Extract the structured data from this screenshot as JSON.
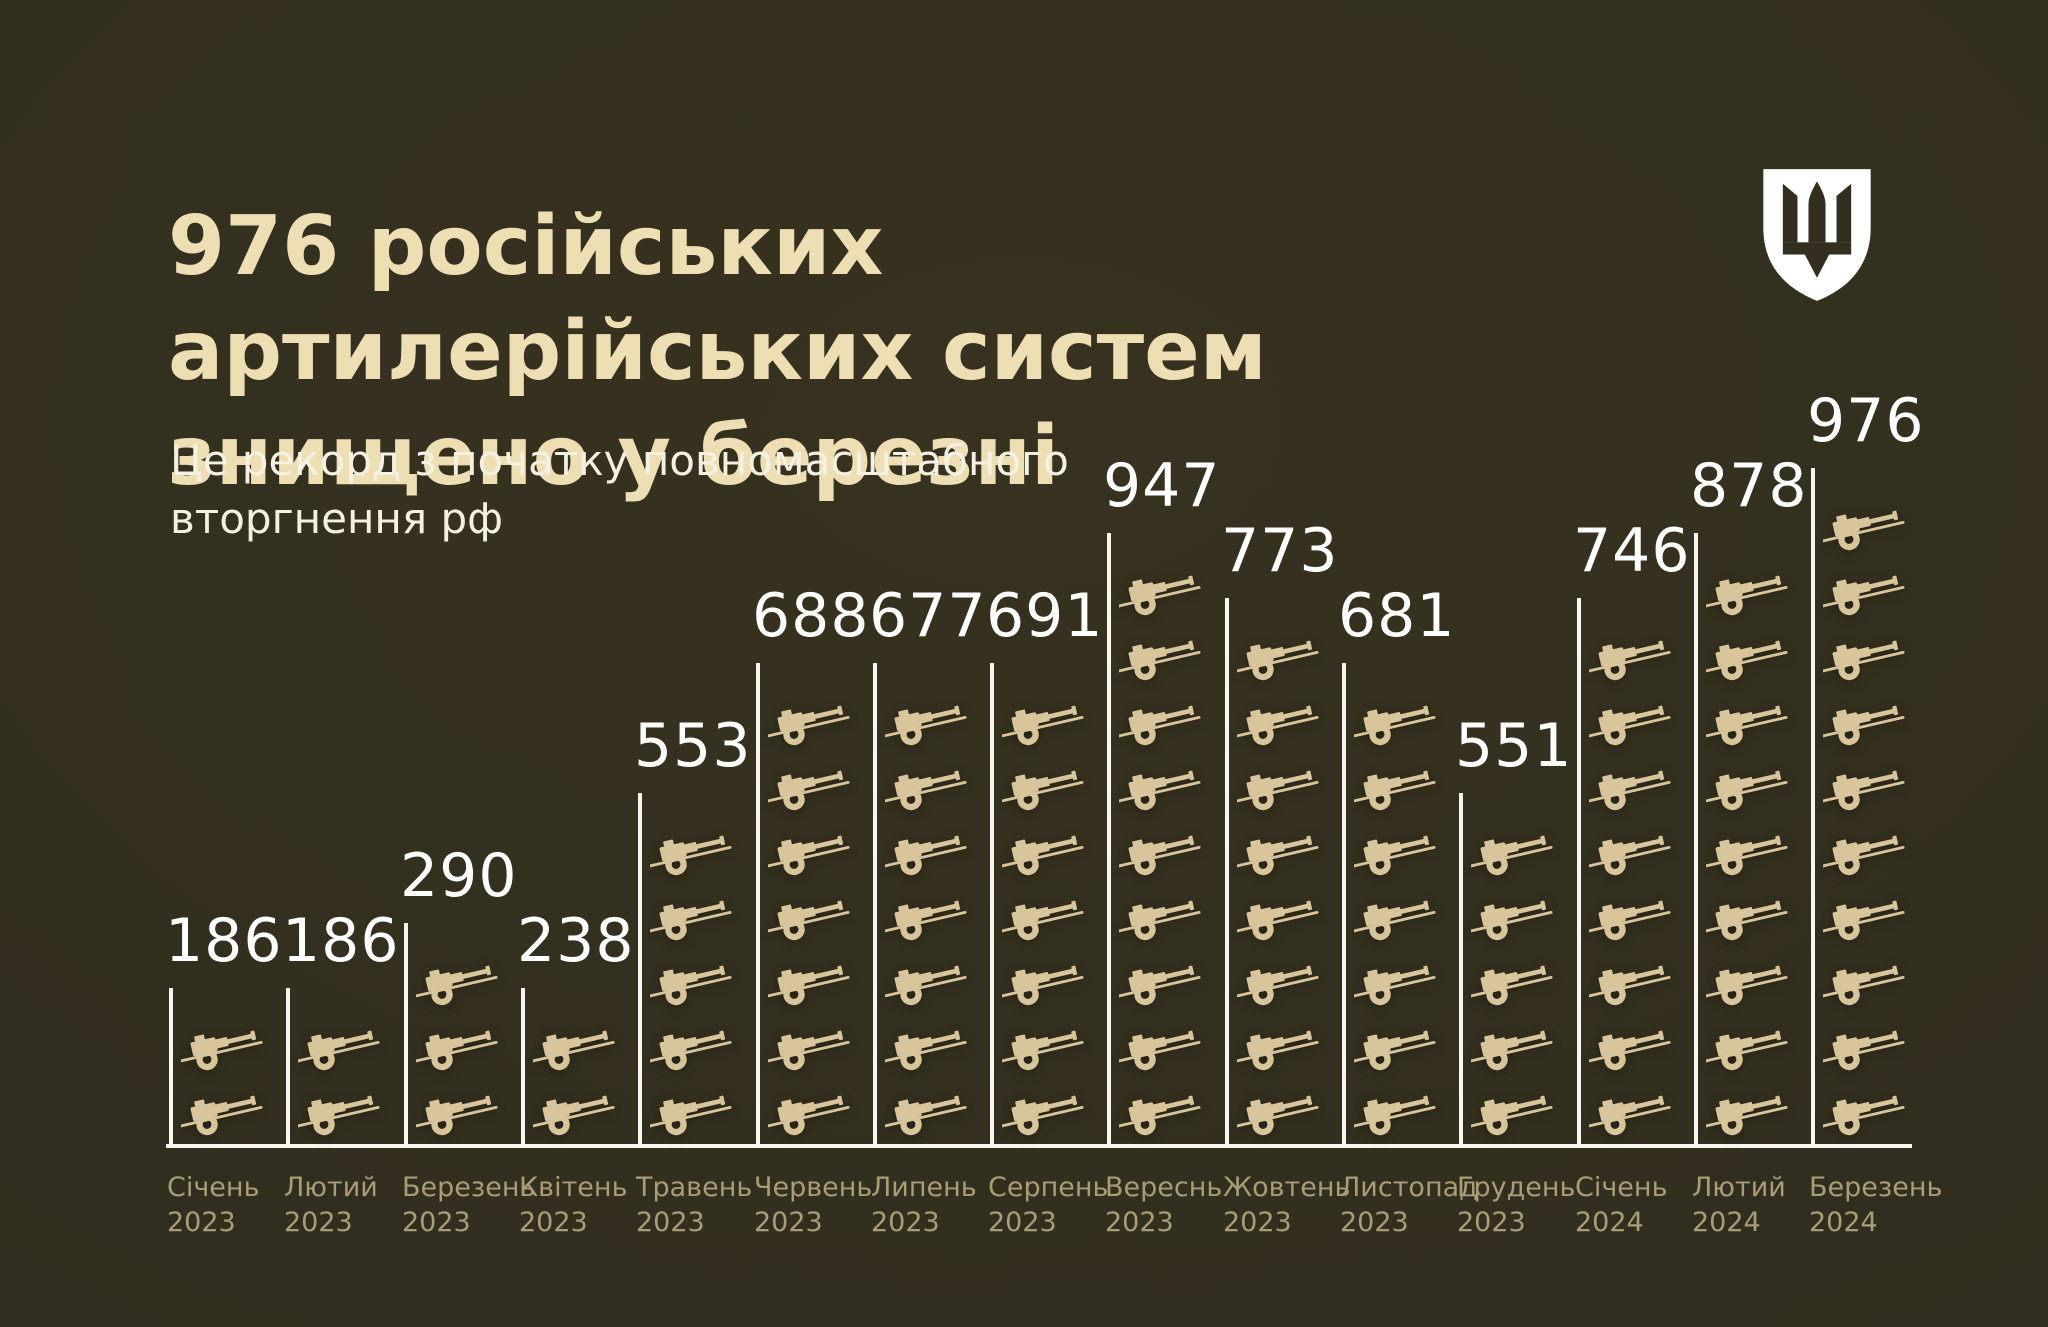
{
  "page": {
    "background": "#332e1f"
  },
  "header": {
    "title": "976 російських артилерійських систем знищено у березні",
    "subtitle": "Це рекорд з початку повномасштабного вторгнення рф"
  },
  "logo": {
    "icon": "mod-ukraine-trident-shield",
    "shield_color": "#ffffff"
  },
  "chart_data": {
    "type": "bar",
    "variant": "pictogram",
    "icon": "artillery-cannon-icon",
    "icon_represents": 100,
    "title": "976 російських артилерійських систем знищено у березні",
    "subtitle": "Це рекорд з початку повномасштабного вторгнення рф",
    "categories": [
      "Січень 2023",
      "Лютий 2023",
      "Березень 2023",
      "Квітень 2023",
      "Травень 2023",
      "Червень 2023",
      "Липень 2023",
      "Серпень 2023",
      "Вереснь 2023",
      "Жовтень 2023",
      "Листопад 2023",
      "Грудень 2023",
      "Січень 2024",
      "Лютий 2024",
      "Березень 2024"
    ],
    "values": [
      186,
      186,
      290,
      238,
      553,
      688,
      677,
      691,
      947,
      773,
      681,
      551,
      746,
      878,
      976
    ],
    "points": [
      {
        "month": "Січень",
        "year": "2023",
        "value": 186,
        "icons": 2
      },
      {
        "month": "Лютий",
        "year": "2023",
        "value": 186,
        "icons": 2
      },
      {
        "month": "Березень",
        "year": "2023",
        "value": 290,
        "icons": 3
      },
      {
        "month": "Квітень",
        "year": "2023",
        "value": 238,
        "icons": 2
      },
      {
        "month": "Травень",
        "year": "2023",
        "value": 553,
        "icons": 5
      },
      {
        "month": "Червень",
        "year": "2023",
        "value": 688,
        "icons": 7
      },
      {
        "month": "Липень",
        "year": "2023",
        "value": 677,
        "icons": 7
      },
      {
        "month": "Серпень",
        "year": "2023",
        "value": 691,
        "icons": 7
      },
      {
        "month": "Вереснь",
        "year": "2023",
        "value": 947,
        "icons": 9
      },
      {
        "month": "Жовтень",
        "year": "2023",
        "value": 773,
        "icons": 8
      },
      {
        "month": "Листопад",
        "year": "2023",
        "value": 681,
        "icons": 7
      },
      {
        "month": "Грудень",
        "year": "2023",
        "value": 551,
        "icons": 5
      },
      {
        "month": "Січень",
        "year": "2024",
        "value": 746,
        "icons": 8
      },
      {
        "month": "Лютий",
        "year": "2024",
        "value": 878,
        "icons": 9
      },
      {
        "month": "Березень",
        "year": "2024",
        "value": 976,
        "icons": 10
      }
    ],
    "ylim": [
      0,
      1000
    ],
    "grid": false,
    "legend": "none",
    "value_labels": "above-bar",
    "colors": {
      "background": "#332e1f",
      "title": "#eddeb4",
      "subtitle": "#f5f1e2",
      "value_label": "#ffffff",
      "axis_line": "#f8f6ef",
      "month_label": "#a89d77",
      "icon": "#d8c59c"
    }
  }
}
